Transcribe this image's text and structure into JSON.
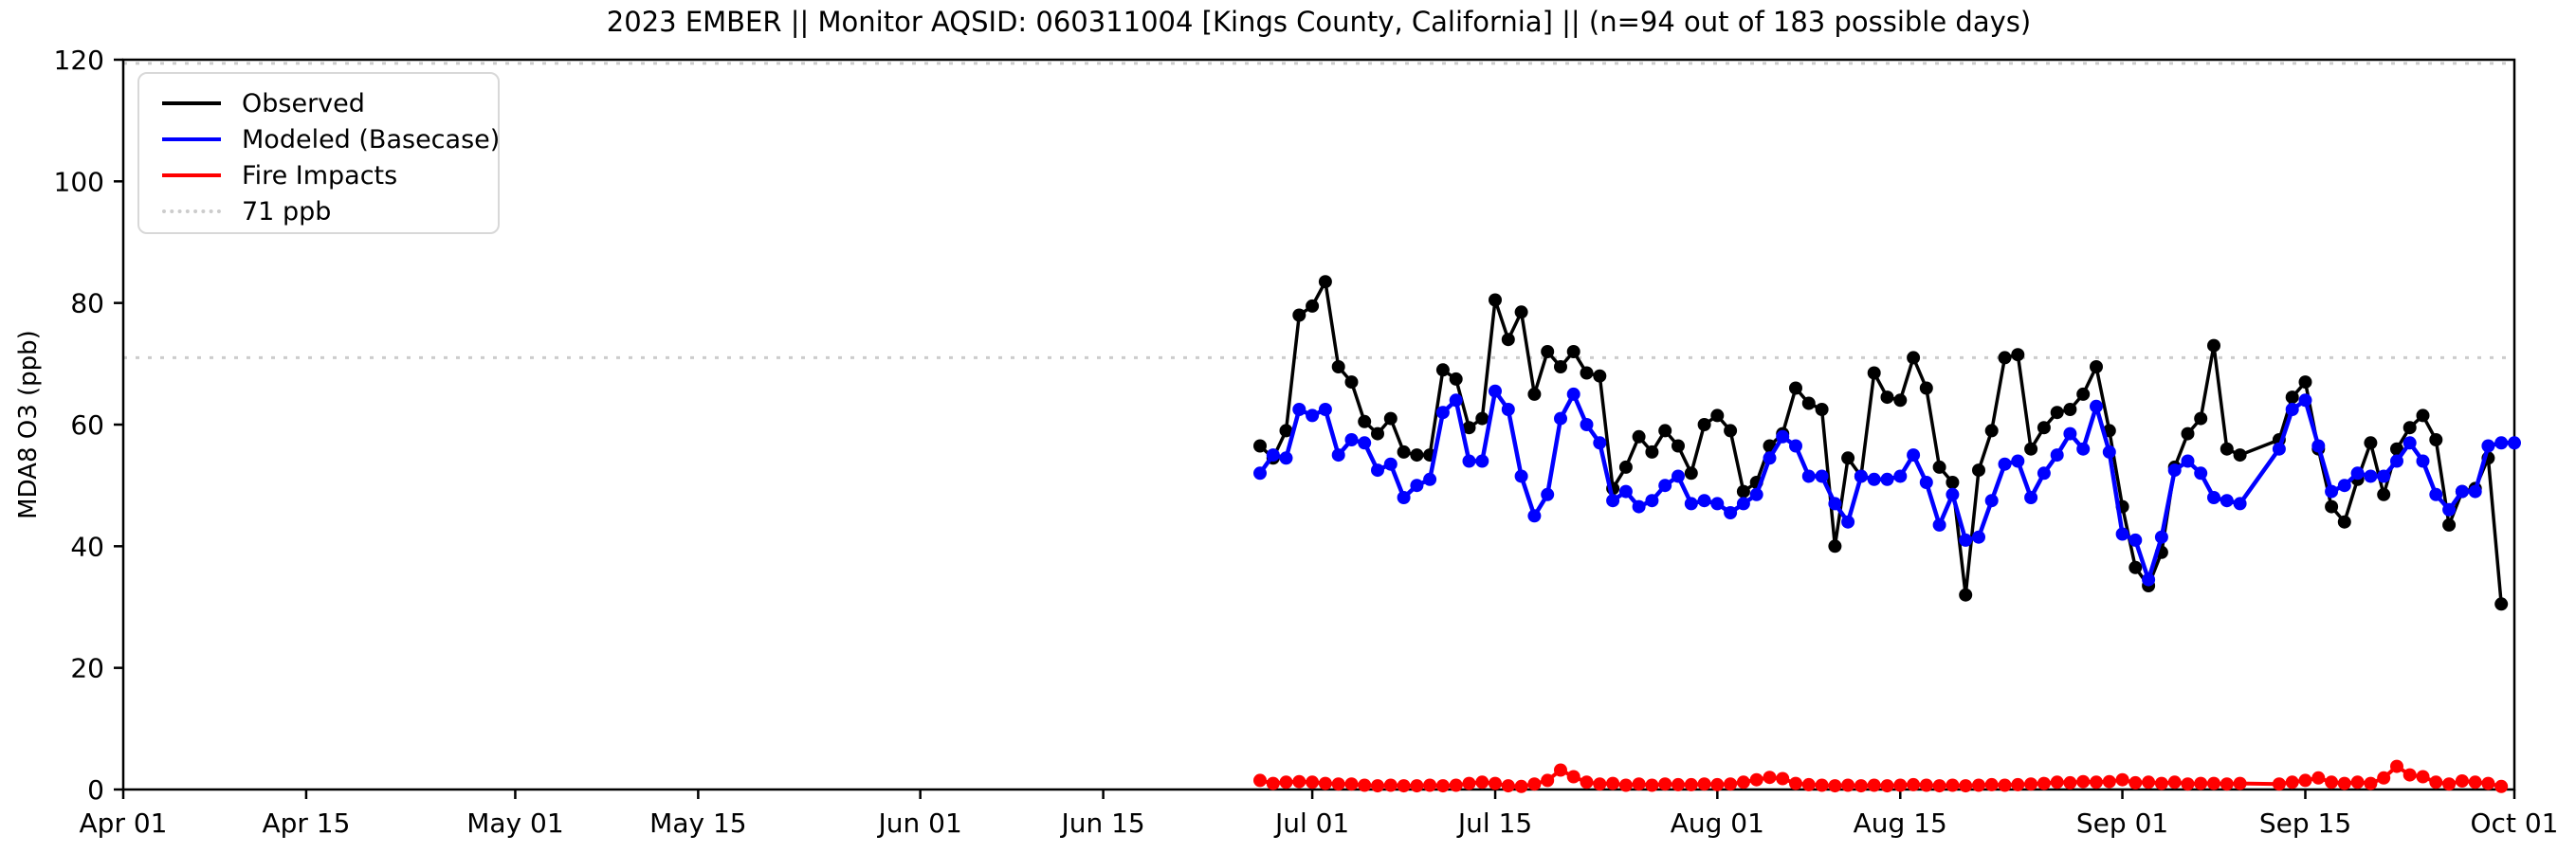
{
  "title": "2023 EMBER || Monitor AQSID: 060311004 [Kings County, California] || (n=94 out of 183 possible days)",
  "legend": {
    "items": [
      {
        "label": "Observed",
        "color": "#000000",
        "style": "solid"
      },
      {
        "label": "Modeled (Basecase)",
        "color": "#0000ff",
        "style": "solid"
      },
      {
        "label": "Fire Impacts",
        "color": "#ff0000",
        "style": "solid"
      },
      {
        "label": "71 ppb",
        "color": "#cccccc",
        "style": "dotted"
      }
    ]
  },
  "chart_data": {
    "type": "line",
    "title": "2023 EMBER || Monitor AQSID: 060311004 [Kings County, California] || (n=94 out of 183 possible days)",
    "xlabel": "",
    "ylabel": "MDA8 O3 (ppb)",
    "ylim": [
      0,
      120
    ],
    "yticks": [
      0,
      20,
      40,
      60,
      80,
      100,
      120
    ],
    "x_range_days": [
      0,
      183
    ],
    "xtick_labels": [
      "Apr 01",
      "Apr 15",
      "May 01",
      "May 15",
      "Jun 01",
      "Jun 15",
      "Jul 01",
      "Jul 15",
      "Aug 01",
      "Aug 15",
      "Sep 01",
      "Sep 15",
      "Oct 01"
    ],
    "month_offsets": {
      "Apr": 0,
      "May": 30,
      "Jun": 61,
      "Jul": 91,
      "Aug": 122,
      "Sep": 153,
      "Oct": 183
    },
    "grid": false,
    "legend_position": "upper left",
    "missing_dates": [
      "Sep 11",
      "Sep 12"
    ],
    "reference_lines": [
      {
        "label": "71 ppb",
        "value": 71,
        "color": "#cccccc",
        "style": "dotted"
      },
      {
        "label": "",
        "value": 119.4,
        "color": "#cccccc",
        "style": "dotted"
      }
    ],
    "dates": [
      "Jun 27",
      "Jun 28",
      "Jun 29",
      "Jun 30",
      "Jul 01",
      "Jul 02",
      "Jul 03",
      "Jul 04",
      "Jul 05",
      "Jul 06",
      "Jul 07",
      "Jul 08",
      "Jul 09",
      "Jul 10",
      "Jul 11",
      "Jul 12",
      "Jul 13",
      "Jul 14",
      "Jul 15",
      "Jul 16",
      "Jul 17",
      "Jul 18",
      "Jul 19",
      "Jul 20",
      "Jul 21",
      "Jul 22",
      "Jul 23",
      "Jul 24",
      "Jul 25",
      "Jul 26",
      "Jul 27",
      "Jul 28",
      "Jul 29",
      "Jul 30",
      "Jul 31",
      "Aug 01",
      "Aug 02",
      "Aug 03",
      "Aug 04",
      "Aug 05",
      "Aug 06",
      "Aug 07",
      "Aug 08",
      "Aug 09",
      "Aug 10",
      "Aug 11",
      "Aug 12",
      "Aug 13",
      "Aug 14",
      "Aug 15",
      "Aug 16",
      "Aug 17",
      "Aug 18",
      "Aug 19",
      "Aug 20",
      "Aug 21",
      "Aug 22",
      "Aug 23",
      "Aug 24",
      "Aug 25",
      "Aug 26",
      "Aug 27",
      "Aug 28",
      "Aug 29",
      "Aug 30",
      "Aug 31",
      "Sep 01",
      "Sep 02",
      "Sep 03",
      "Sep 04",
      "Sep 05",
      "Sep 06",
      "Sep 07",
      "Sep 08",
      "Sep 09",
      "Sep 10",
      "Sep 13",
      "Sep 14",
      "Sep 15",
      "Sep 16",
      "Sep 17",
      "Sep 18",
      "Sep 19",
      "Sep 20",
      "Sep 21",
      "Sep 22",
      "Sep 23",
      "Sep 24",
      "Sep 25",
      "Sep 26",
      "Sep 27",
      "Sep 28",
      "Sep 29",
      "Sep 30"
    ],
    "series": [
      {
        "name": "Observed",
        "color": "#000000",
        "linewidth": 3.5,
        "markersize": 7,
        "values": [
          56.5,
          54.5,
          59,
          78,
          79.5,
          83.5,
          69.5,
          67,
          60.5,
          58.5,
          61,
          55.5,
          55,
          55,
          69,
          67.5,
          59.5,
          61,
          80.5,
          74,
          78.5,
          65,
          72,
          69.5,
          72,
          68.5,
          68,
          49.5,
          53,
          58,
          55.5,
          59,
          56.5,
          52,
          60,
          61.5,
          59,
          49,
          50.5,
          56.5,
          58.5,
          66,
          63.5,
          62.5,
          40,
          54.5,
          51.5,
          68.5,
          64.5,
          64,
          71,
          66,
          53,
          50.5,
          32,
          52.5,
          59,
          71,
          71.5,
          56,
          59.5,
          62,
          62.5,
          65,
          69.5,
          59,
          46.5,
          36.5,
          33.5,
          39,
          53,
          58.5,
          61,
          73,
          56,
          55,
          57.5,
          64.5,
          67,
          56,
          46.5,
          44,
          51,
          57,
          48.5,
          56,
          59.5,
          61.5,
          57.5,
          43.5,
          49,
          49.5,
          54.5,
          30.5
        ]
      },
      {
        "name": "Modeled (Basecase)",
        "color": "#0000ff",
        "linewidth": 4.5,
        "markersize": 7,
        "values": [
          52,
          55,
          54.5,
          62.5,
          61.5,
          62.5,
          55,
          57.5,
          57,
          52.5,
          53.5,
          48,
          50,
          51,
          62,
          64,
          54,
          54,
          65.5,
          62.5,
          51.5,
          45,
          48.5,
          61,
          65,
          60,
          57,
          47.5,
          49,
          46.5,
          47.5,
          50,
          51.5,
          47,
          47.5,
          47,
          45.5,
          47,
          48.5,
          54.5,
          58,
          56.5,
          51.5,
          51.5,
          47,
          44,
          51.5,
          51,
          51,
          51.5,
          55,
          50.5,
          43.5,
          48.5,
          41,
          41.5,
          47.5,
          53.5,
          54,
          48,
          52,
          55,
          58.5,
          56,
          63,
          55.5,
          42,
          41,
          34.5,
          41.5,
          52.5,
          54,
          52,
          48,
          47.5,
          47,
          56,
          62.5,
          64,
          56.5,
          49,
          50,
          52,
          51.5,
          51.5,
          54,
          57,
          54,
          48.5,
          46,
          49,
          49,
          56.5,
          57
        ],
        "extra_dates": [
          "Oct 01"
        ],
        "extra_values": [
          57
        ]
      },
      {
        "name": "Fire Impacts",
        "color": "#ff0000",
        "linewidth": 4,
        "markersize": 7,
        "values": [
          1.5,
          1,
          1.2,
          1.3,
          1.2,
          1,
          0.9,
          0.9,
          0.7,
          0.6,
          0.7,
          0.6,
          0.6,
          0.7,
          0.6,
          0.7,
          1,
          1.2,
          1,
          0.6,
          0.5,
          0.9,
          1.5,
          3.2,
          2.1,
          1.2,
          0.9,
          1,
          0.7,
          0.9,
          0.7,
          0.9,
          0.8,
          0.8,
          0.9,
          0.8,
          0.9,
          1.2,
          1.6,
          2,
          1.8,
          1,
          0.8,
          0.7,
          0.6,
          0.7,
          0.6,
          0.7,
          0.6,
          0.7,
          0.8,
          0.7,
          0.6,
          0.7,
          0.6,
          0.7,
          0.8,
          0.7,
          0.8,
          0.9,
          1,
          1.2,
          1.1,
          1.3,
          1.2,
          1.3,
          1.6,
          1.1,
          1.2,
          1,
          1.2,
          0.9,
          1,
          1,
          0.9,
          1,
          0.9,
          1.2,
          1.5,
          1.9,
          1.2,
          1,
          1.2,
          1,
          1.9,
          3.8,
          2.4,
          2.1,
          1.2,
          0.9,
          1.4,
          1.2,
          1,
          0.5
        ]
      }
    ]
  },
  "axes": {
    "tick_color": "#000000",
    "spine_color": "#000000",
    "label_color": "#000000"
  }
}
